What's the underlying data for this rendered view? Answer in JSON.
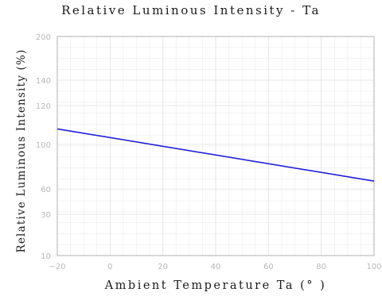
{
  "chart_data": {
    "type": "line",
    "title": "Relative Luminous Intensity - Ta",
    "xlabel": "Ambient Temperature Ta (° )",
    "ylabel": "Relative Luminous Intensity (%)",
    "xlim": [
      -20,
      100
    ],
    "x_ticks": [
      "−20",
      "0",
      "20",
      "40",
      "60",
      "80",
      "100"
    ],
    "y_ticks": [
      {
        "value": 200,
        "label": "200"
      },
      {
        "value": 140,
        "label": "140"
      },
      {
        "value": 120,
        "label": "120"
      },
      {
        "value": 100,
        "label": "100"
      },
      {
        "value": 60,
        "label": "60"
      },
      {
        "value": 30,
        "label": "30"
      },
      {
        "value": 10,
        "label": "10"
      }
    ],
    "grid": true,
    "colors": {
      "series": "#2020d8",
      "grid": "#ececec",
      "axis": "#b0b0b0",
      "tick_text": "#b8b8b8"
    },
    "series": [
      {
        "x": [
          -20,
          100
        ],
        "y": [
          108,
          67
        ]
      }
    ]
  }
}
